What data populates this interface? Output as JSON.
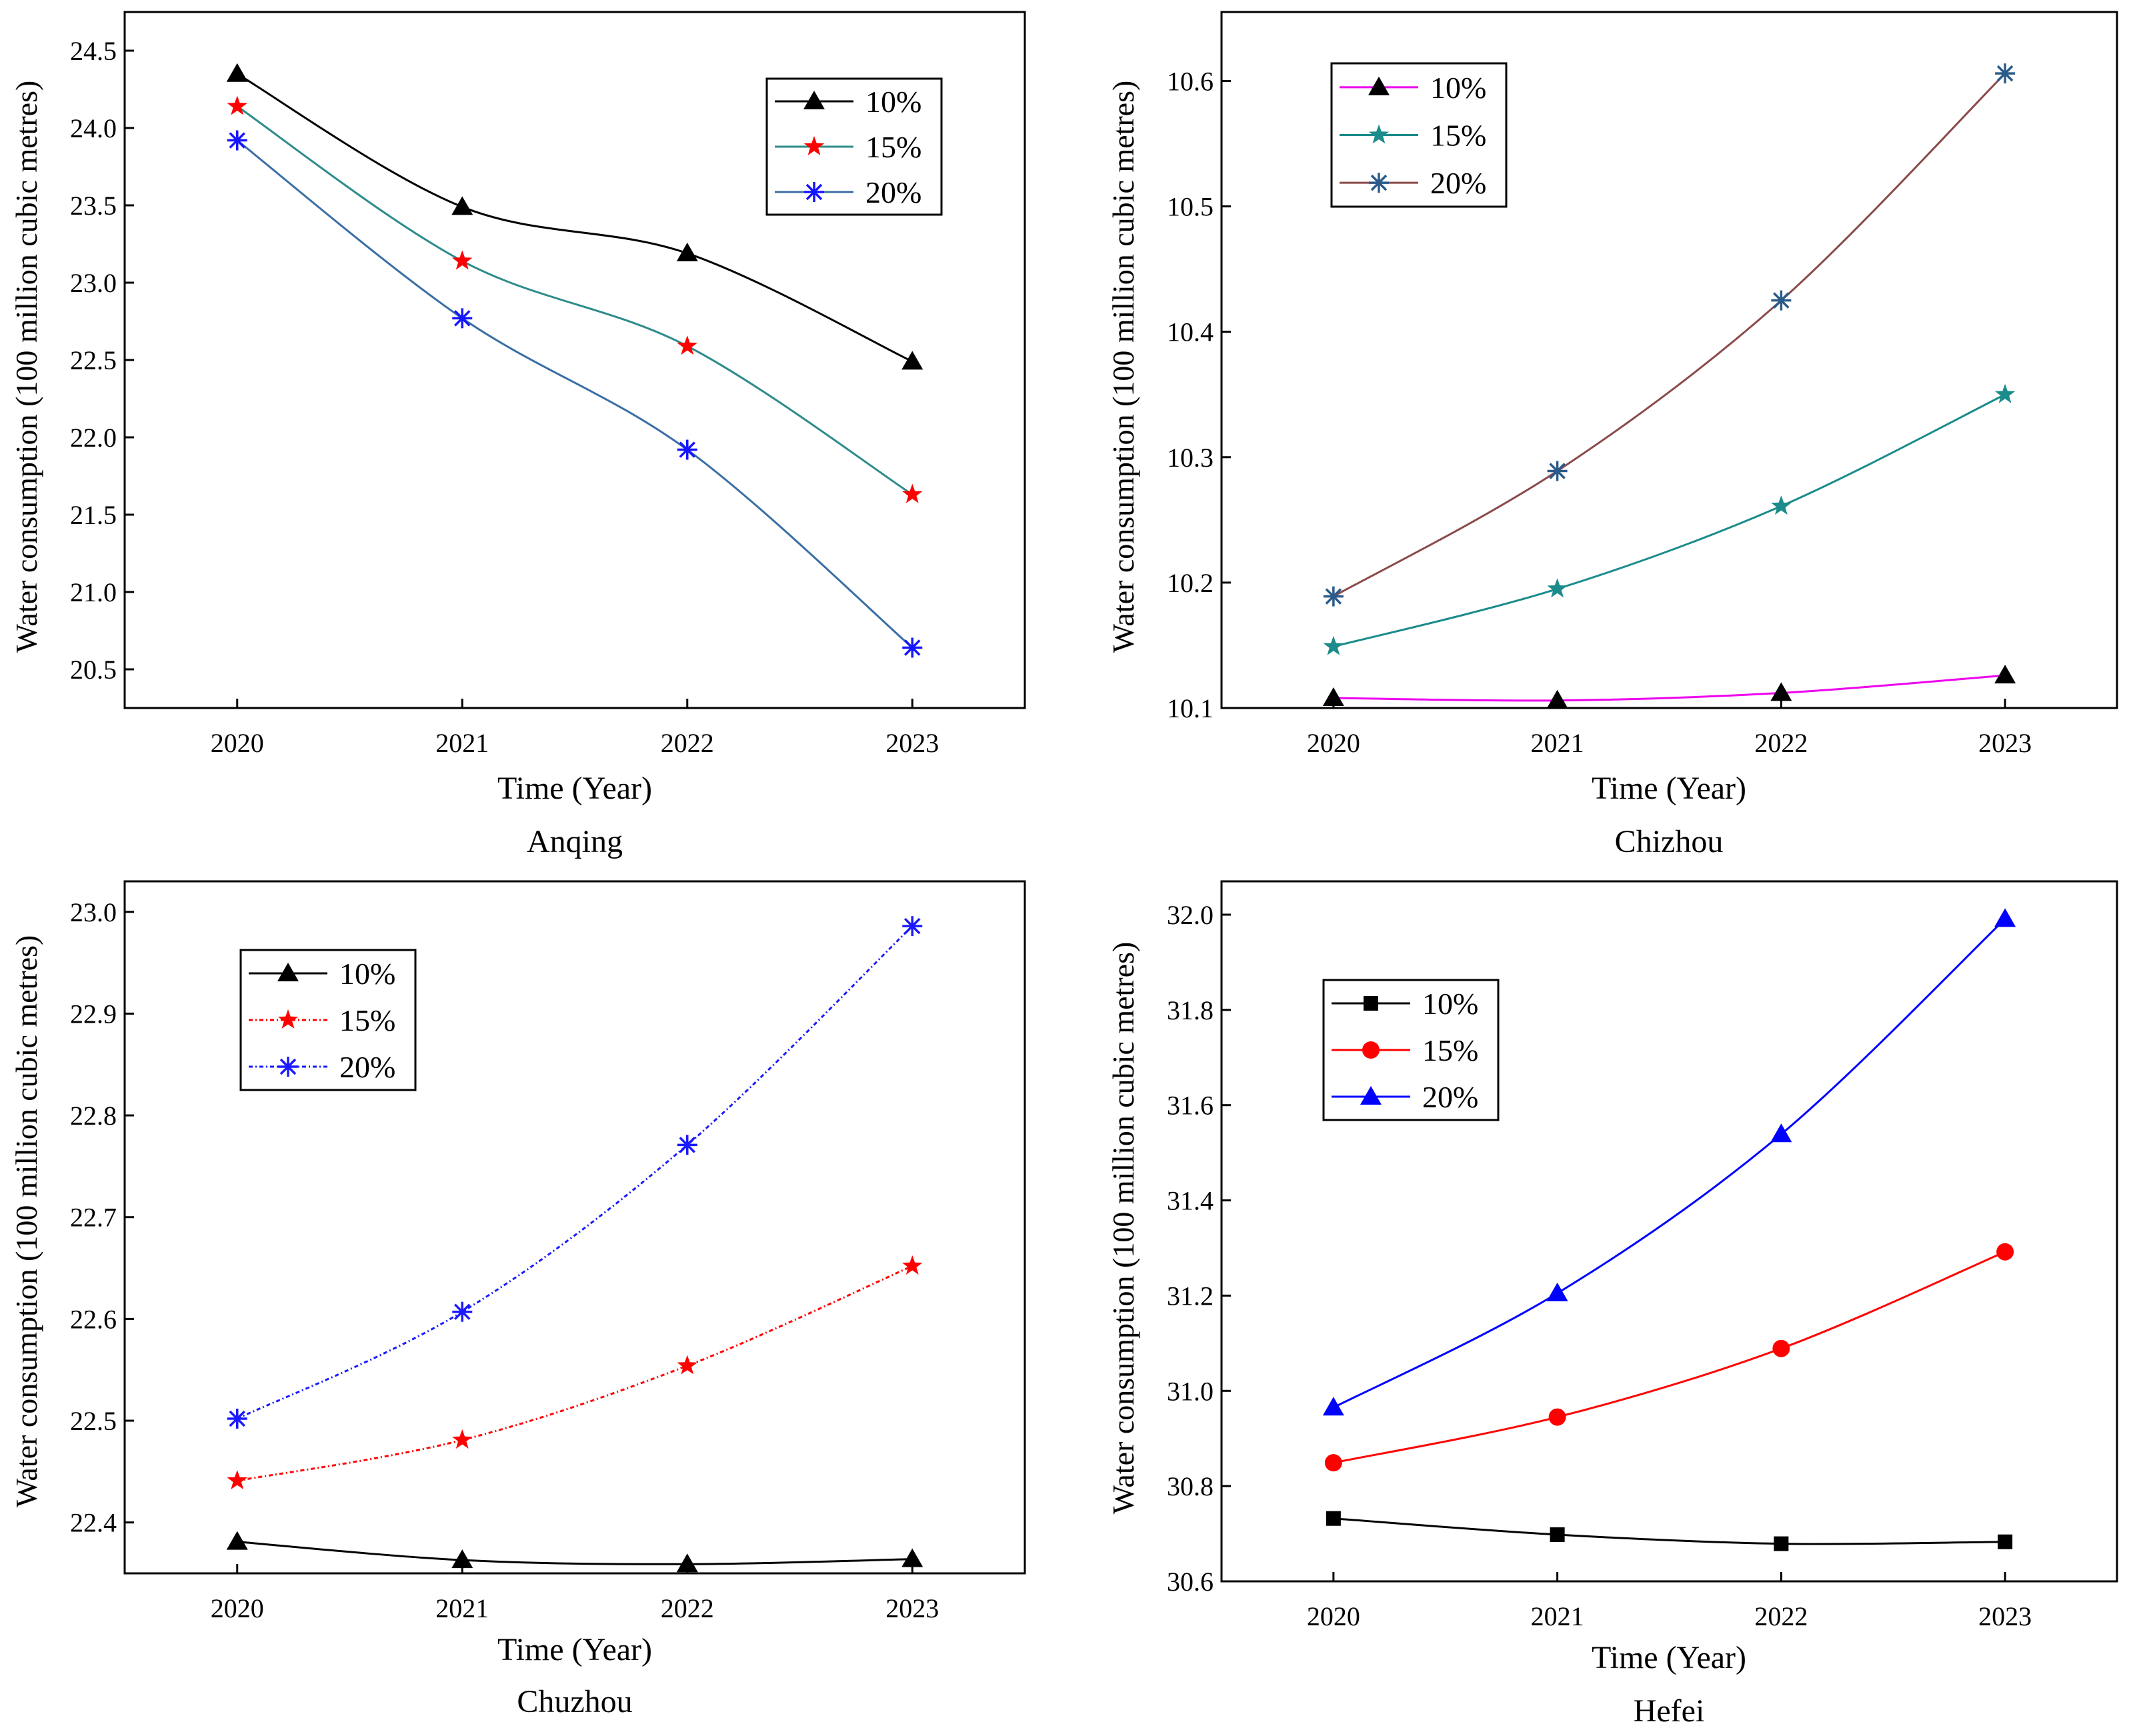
{
  "chart_data": [
    {
      "type": "line",
      "title": "Anqing",
      "xlabel": "Time (Year)",
      "ylabel": "Water consumption (100 million cubic metres)",
      "x": [
        "2020",
        "2021",
        "2022",
        "2023"
      ],
      "xlim": [
        2019.5,
        2023.5
      ],
      "ylim": [
        20.25,
        24.75
      ],
      "yticks": [
        "20.5",
        "21.0",
        "21.5",
        "22.0",
        "22.5",
        "23.0",
        "23.5",
        "24.0",
        "24.5"
      ],
      "legend_position": "top-right",
      "series": [
        {
          "name": "10%",
          "values": [
            24.35,
            23.49,
            23.19,
            22.49
          ],
          "color": "#000000",
          "marker": "triangle"
        },
        {
          "name": "15%",
          "values": [
            24.14,
            23.14,
            22.59,
            21.63
          ],
          "color": "#2e8b8b",
          "marker_color": "#ff0000",
          "marker": "star"
        },
        {
          "name": "20%",
          "values": [
            23.92,
            22.77,
            21.92,
            20.64
          ],
          "color": "#3a6ea5",
          "marker_color": "#1515ff",
          "marker": "asterisk"
        }
      ]
    },
    {
      "type": "line",
      "title": "Chizhou",
      "xlabel": "Time (Year)",
      "ylabel": "Water consumption (100 million cubic metres)",
      "x": [
        "2020",
        "2021",
        "2022",
        "2023"
      ],
      "xlim": [
        2019.5,
        2023.5
      ],
      "ylim": [
        10.1,
        10.655
      ],
      "yticks": [
        "10.1",
        "10.2",
        "10.3",
        "10.4",
        "10.5",
        "10.6"
      ],
      "legend_position": "top-left",
      "series": [
        {
          "name": "10%",
          "values": [
            10.108,
            10.106,
            10.112,
            10.126
          ],
          "color": "#ee00ee",
          "marker_color": "#000000",
          "marker": "triangle"
        },
        {
          "name": "15%",
          "values": [
            10.149,
            10.195,
            10.261,
            10.35
          ],
          "color": "#1b8b8b",
          "marker_color": "#1b8b8b",
          "marker": "star"
        },
        {
          "name": "20%",
          "values": [
            10.189,
            10.289,
            10.425,
            10.606
          ],
          "color": "#8b4a4a",
          "marker_color": "#2a5a8a",
          "marker": "asterisk"
        }
      ]
    },
    {
      "type": "line",
      "title": "Chuzhou",
      "xlabel": "Time (Year)",
      "ylabel": "Water consumption (100 million cubic metres)",
      "x": [
        "2020",
        "2021",
        "2022",
        "2023"
      ],
      "xlim": [
        2019.5,
        2023.5
      ],
      "ylim": [
        22.35,
        23.03
      ],
      "yticks": [
        "22.4",
        "22.5",
        "22.6",
        "22.7",
        "22.8",
        "22.9",
        "23.0"
      ],
      "legend_position": "top-left",
      "series": [
        {
          "name": "10%",
          "values": [
            22.381,
            22.363,
            22.359,
            22.364
          ],
          "color": "#000000",
          "marker": "triangle",
          "dash": ""
        },
        {
          "name": "15%",
          "values": [
            22.441,
            22.481,
            22.554,
            22.652
          ],
          "color": "#ff0000",
          "marker": "star",
          "dash": "6,4,2,4"
        },
        {
          "name": "20%",
          "values": [
            22.502,
            22.607,
            22.771,
            22.986
          ],
          "color": "#1a1aff",
          "marker": "asterisk",
          "dash": "6,4,2,4"
        }
      ]
    },
    {
      "type": "line",
      "title": "Hefei",
      "xlabel": "Time (Year)",
      "ylabel": "Water consumption (100 million cubic metres)",
      "x": [
        "2020",
        "2021",
        "2022",
        "2023"
      ],
      "xlim": [
        2019.5,
        2023.5
      ],
      "ylim": [
        30.6,
        32.07
      ],
      "yticks": [
        "30.6",
        "30.8",
        "31.0",
        "31.2",
        "31.4",
        "31.6",
        "31.8",
        "32.0"
      ],
      "legend_position": "top-left",
      "series": [
        {
          "name": "10%",
          "values": [
            30.732,
            30.698,
            30.679,
            30.683
          ],
          "color": "#000000",
          "marker": "square"
        },
        {
          "name": "15%",
          "values": [
            30.849,
            30.945,
            31.089,
            31.292
          ],
          "color": "#ff0000",
          "marker": "circle"
        },
        {
          "name": "20%",
          "values": [
            30.965,
            31.205,
            31.539,
            31.991
          ],
          "color": "#0000ff",
          "marker": "triangle"
        }
      ]
    }
  ]
}
